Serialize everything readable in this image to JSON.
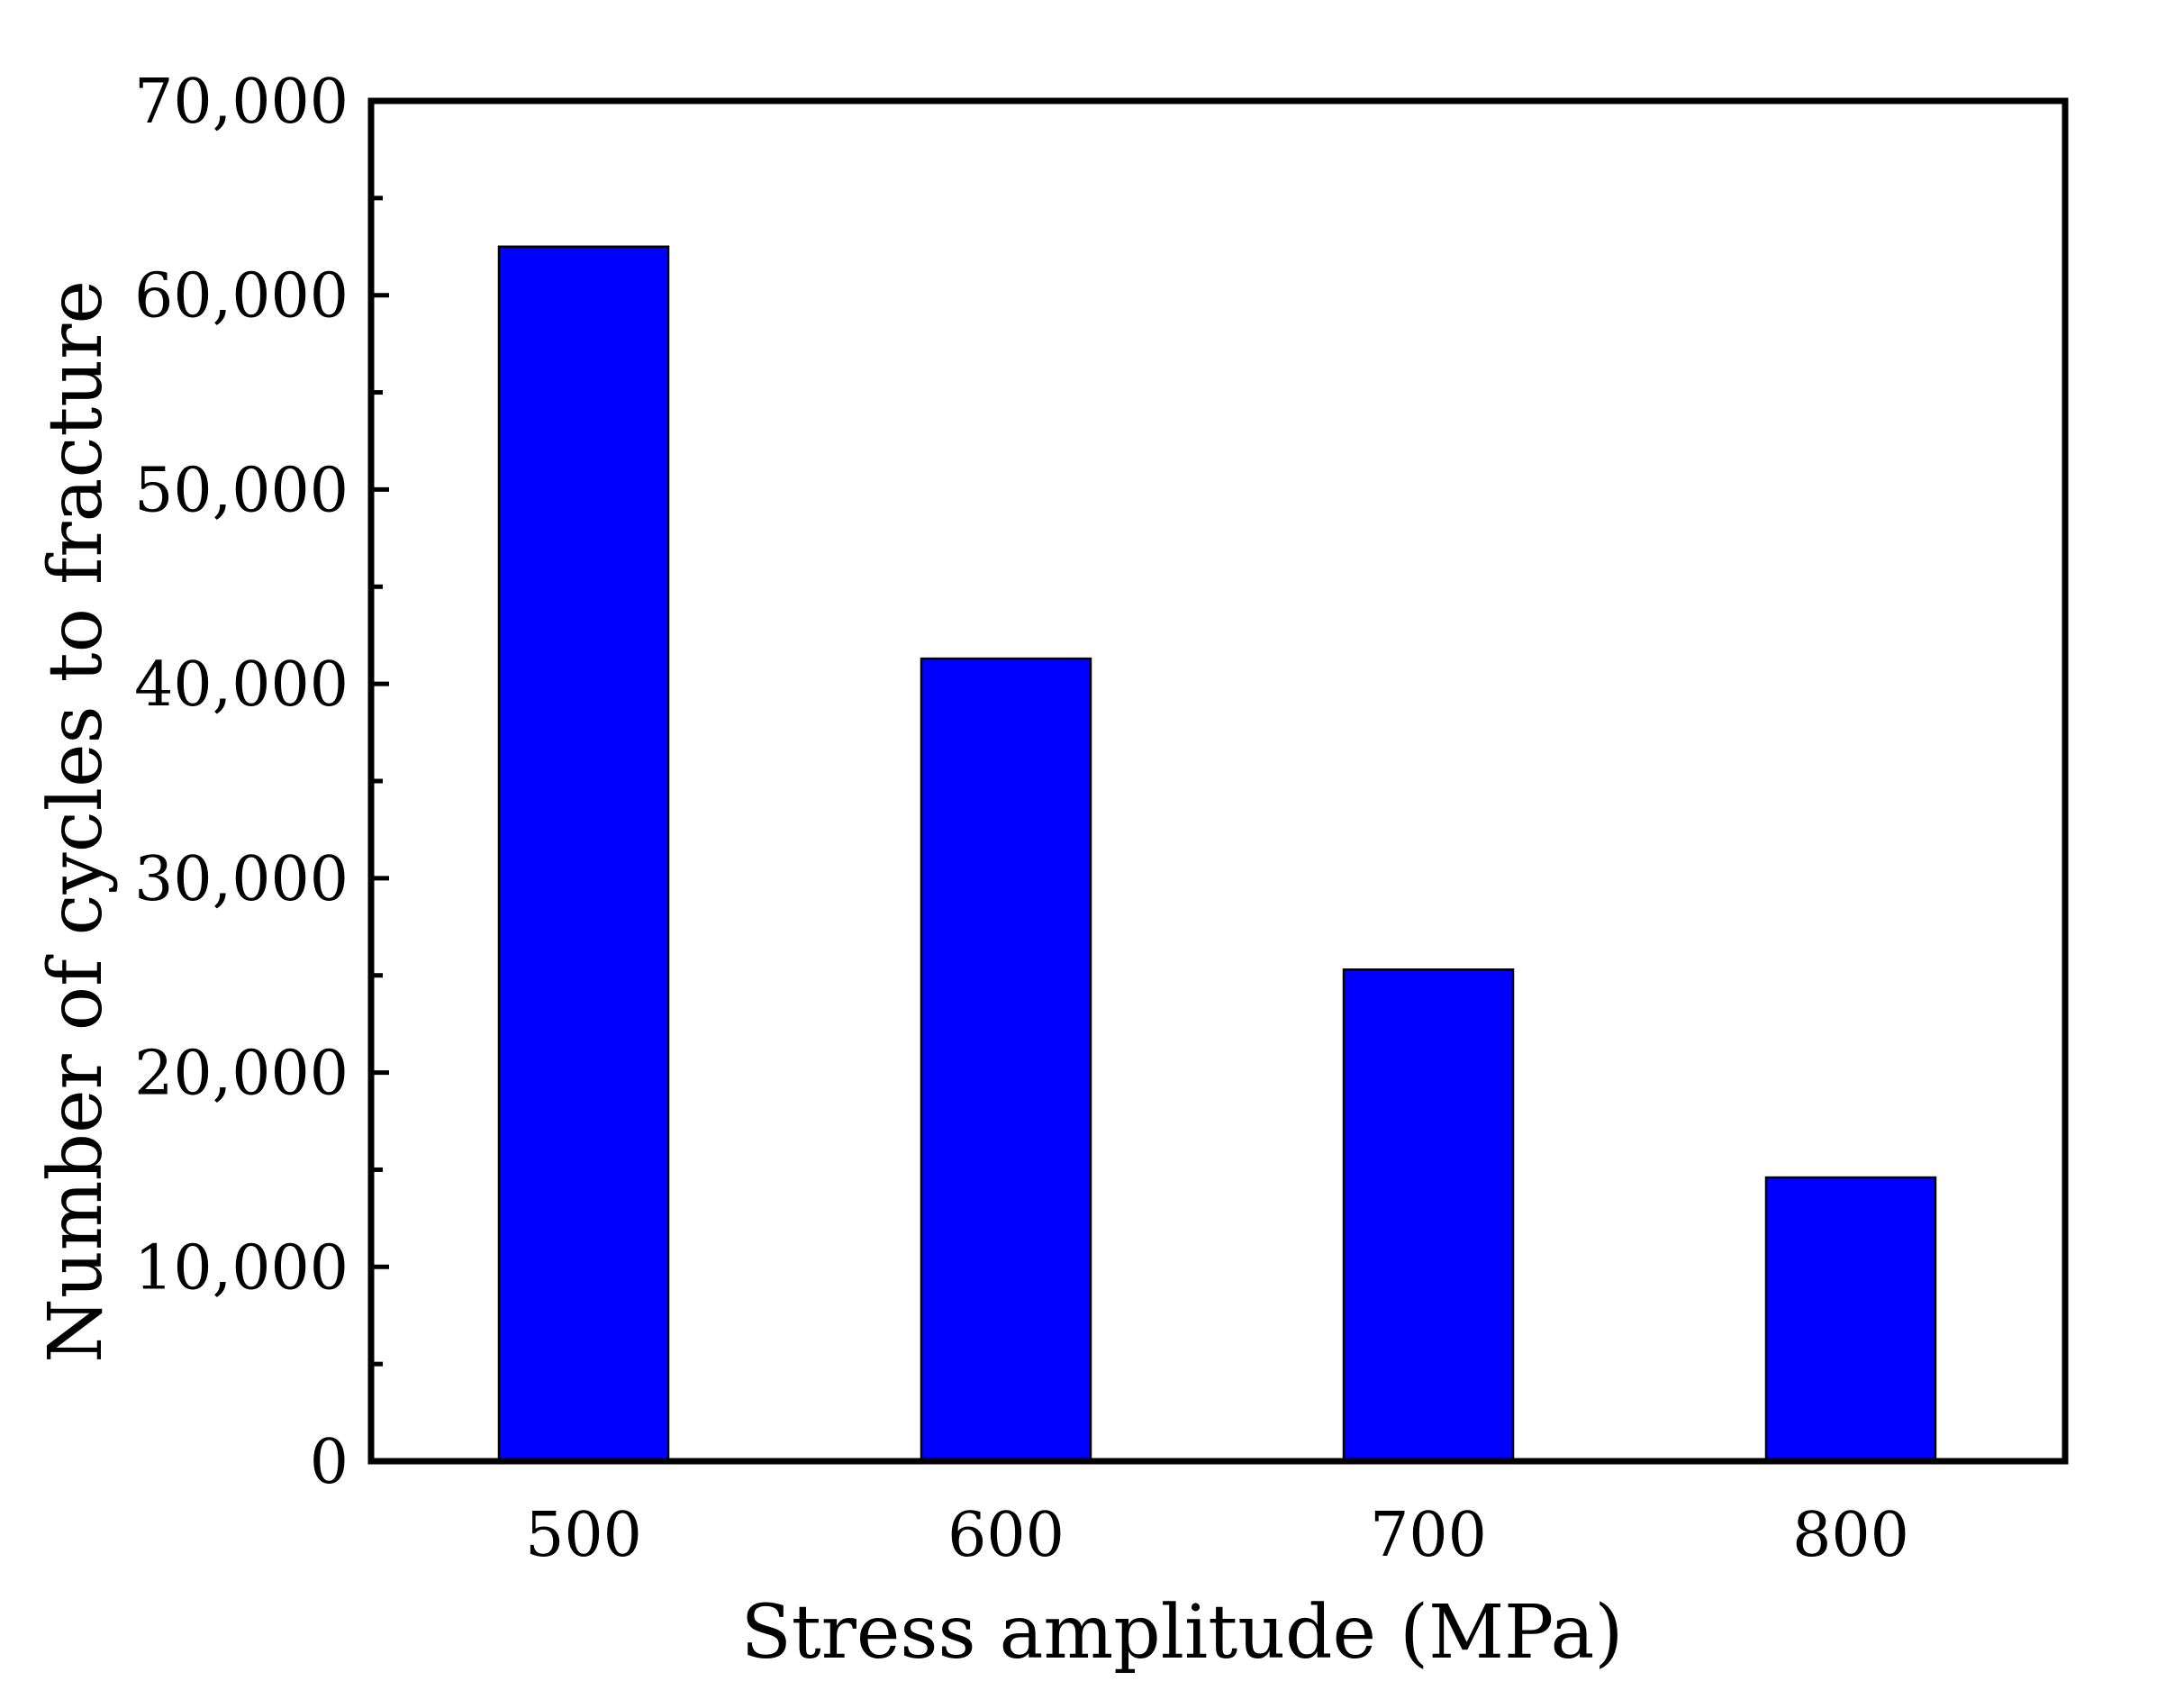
{
  "chart_data": {
    "type": "bar",
    "categories": [
      "500",
      "600",
      "700",
      "800"
    ],
    "values": [
      62500,
      41300,
      25300,
      14600
    ],
    "title": "",
    "xlabel": "Stress amplitude (MPa)",
    "ylabel": "Number of cycles to fracture",
    "ylim": [
      0,
      70000
    ],
    "yticks": [
      0,
      10000,
      20000,
      30000,
      40000,
      50000,
      60000,
      70000
    ],
    "ytick_labels": [
      "0",
      "10,000",
      "20,000",
      "30,000",
      "40,000",
      "50,000",
      "60,000",
      "70,000"
    ],
    "grid": false,
    "legend": "none",
    "bar_color": "#0000ff",
    "bar_edge_color": "#000000"
  }
}
